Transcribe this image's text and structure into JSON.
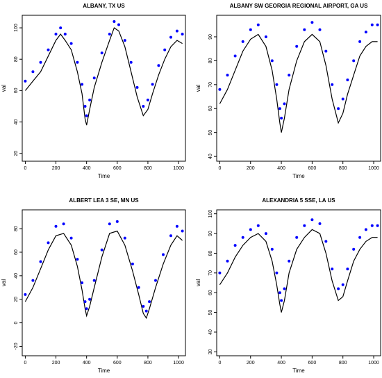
{
  "panels": [
    {
      "title": "ALBANY, TX US",
      "xlabel": "Time",
      "ylabel": "val"
    },
    {
      "title": "ALBANY SW GEORGIA REGIONAL AIRPORT, GA US",
      "xlabel": "Time",
      "ylabel": "val"
    },
    {
      "title": "ALBERT LEA 3 SE, MN US",
      "xlabel": "Time",
      "ylabel": "val"
    },
    {
      "title": "ALEXANDRIA 5 SSE, LA US",
      "xlabel": "Time",
      "ylabel": "val"
    }
  ],
  "colors": {
    "line": "#000000",
    "points": "#0000ff"
  },
  "chart_data": [
    {
      "type": "line",
      "title": "ALBANY, TX US",
      "xlabel": "Time",
      "ylabel": "val",
      "xlim": [
        -20,
        1045
      ],
      "ylim": [
        15,
        108
      ],
      "xticks": [
        0,
        200,
        400,
        600,
        800,
        1000
      ],
      "yticks": [
        20,
        40,
        60,
        80,
        100
      ],
      "series": [
        {
          "role": "line",
          "points": [
            [
              0,
              60
            ],
            [
              50,
              66
            ],
            [
              100,
              72
            ],
            [
              150,
              82
            ],
            [
              200,
              92
            ],
            [
              230,
              96
            ],
            [
              260,
              92
            ],
            [
              300,
              86
            ],
            [
              340,
              72
            ],
            [
              370,
              58
            ],
            [
              390,
              42
            ],
            [
              400,
              38
            ],
            [
              420,
              48
            ],
            [
              450,
              62
            ],
            [
              500,
              78
            ],
            [
              550,
              92
            ],
            [
              580,
              100
            ],
            [
              610,
              98
            ],
            [
              650,
              88
            ],
            [
              690,
              72
            ],
            [
              730,
              56
            ],
            [
              770,
              44
            ],
            [
              800,
              48
            ],
            [
              830,
              58
            ],
            [
              870,
              70
            ],
            [
              910,
              80
            ],
            [
              950,
              88
            ],
            [
              990,
              92
            ],
            [
              1025,
              90
            ]
          ]
        },
        {
          "role": "points",
          "points": [
            [
              0,
              66
            ],
            [
              50,
              72
            ],
            [
              100,
              78
            ],
            [
              150,
              86
            ],
            [
              200,
              96
            ],
            [
              230,
              100
            ],
            [
              260,
              96
            ],
            [
              300,
              90
            ],
            [
              340,
              78
            ],
            [
              370,
              64
            ],
            [
              390,
              50
            ],
            [
              400,
              44
            ],
            [
              420,
              54
            ],
            [
              450,
              68
            ],
            [
              500,
              84
            ],
            [
              550,
              96
            ],
            [
              580,
              104
            ],
            [
              610,
              102
            ],
            [
              650,
              92
            ],
            [
              690,
              78
            ],
            [
              730,
              62
            ],
            [
              770,
              50
            ],
            [
              800,
              54
            ],
            [
              830,
              64
            ],
            [
              870,
              76
            ],
            [
              910,
              86
            ],
            [
              950,
              94
            ],
            [
              990,
              98
            ],
            [
              1025,
              96
            ]
          ]
        }
      ]
    },
    {
      "type": "line",
      "title": "ALBANY SW GEORGIA REGIONAL AIRPORT, GA US",
      "xlabel": "Time",
      "ylabel": "val",
      "xlim": [
        -20,
        1045
      ],
      "ylim": [
        38,
        99
      ],
      "xticks": [
        0,
        200,
        400,
        600,
        800,
        1000
      ],
      "yticks": [
        40,
        50,
        60,
        70,
        80,
        90
      ],
      "series": [
        {
          "role": "line",
          "points": [
            [
              0,
              62
            ],
            [
              50,
              68
            ],
            [
              100,
              76
            ],
            [
              150,
              84
            ],
            [
              200,
              89
            ],
            [
              250,
              91
            ],
            [
              300,
              86
            ],
            [
              340,
              76
            ],
            [
              370,
              64
            ],
            [
              390,
              54
            ],
            [
              400,
              50
            ],
            [
              420,
              56
            ],
            [
              450,
              68
            ],
            [
              500,
              80
            ],
            [
              550,
              88
            ],
            [
              600,
              91
            ],
            [
              650,
              88
            ],
            [
              690,
              78
            ],
            [
              730,
              64
            ],
            [
              770,
              54
            ],
            [
              800,
              58
            ],
            [
              830,
              66
            ],
            [
              870,
              74
            ],
            [
              910,
              82
            ],
            [
              950,
              86
            ],
            [
              990,
              88
            ],
            [
              1025,
              88
            ]
          ]
        },
        {
          "role": "points",
          "points": [
            [
              0,
              68
            ],
            [
              50,
              74
            ],
            [
              100,
              82
            ],
            [
              150,
              88
            ],
            [
              200,
              93
            ],
            [
              250,
              95
            ],
            [
              300,
              90
            ],
            [
              340,
              80
            ],
            [
              370,
              70
            ],
            [
              390,
              60
            ],
            [
              400,
              56
            ],
            [
              420,
              62
            ],
            [
              450,
              74
            ],
            [
              500,
              86
            ],
            [
              550,
              93
            ],
            [
              600,
              96
            ],
            [
              650,
              93
            ],
            [
              690,
              84
            ],
            [
              730,
              70
            ],
            [
              770,
              60
            ],
            [
              800,
              64
            ],
            [
              830,
              72
            ],
            [
              870,
              80
            ],
            [
              910,
              88
            ],
            [
              950,
              92
            ],
            [
              990,
              95
            ],
            [
              1025,
              95
            ]
          ]
        }
      ]
    },
    {
      "type": "line",
      "title": "ALBERT LEA 3 SE, MN US",
      "xlabel": "Time",
      "ylabel": "val",
      "xlim": [
        -20,
        1045
      ],
      "ylim": [
        -28,
        96
      ],
      "xticks": [
        0,
        200,
        400,
        600,
        800,
        1000
      ],
      "yticks": [
        -20,
        0,
        20,
        40,
        60,
        80
      ],
      "series": [
        {
          "role": "line",
          "points": [
            [
              0,
              18
            ],
            [
              50,
              30
            ],
            [
              100,
              46
            ],
            [
              150,
              62
            ],
            [
              200,
              74
            ],
            [
              250,
              76
            ],
            [
              300,
              66
            ],
            [
              340,
              48
            ],
            [
              370,
              28
            ],
            [
              390,
              12
            ],
            [
              400,
              6
            ],
            [
              420,
              14
            ],
            [
              450,
              30
            ],
            [
              500,
              56
            ],
            [
              550,
              76
            ],
            [
              600,
              78
            ],
            [
              650,
              66
            ],
            [
              700,
              44
            ],
            [
              740,
              24
            ],
            [
              770,
              8
            ],
            [
              790,
              4
            ],
            [
              810,
              12
            ],
            [
              850,
              30
            ],
            [
              900,
              50
            ],
            [
              950,
              66
            ],
            [
              990,
              74
            ],
            [
              1025,
              70
            ]
          ]
        },
        {
          "role": "points",
          "points": [
            [
              0,
              24
            ],
            [
              50,
              36
            ],
            [
              100,
              52
            ],
            [
              150,
              68
            ],
            [
              200,
              82
            ],
            [
              250,
              84
            ],
            [
              300,
              72
            ],
            [
              340,
              54
            ],
            [
              370,
              34
            ],
            [
              390,
              18
            ],
            [
              400,
              12
            ],
            [
              420,
              20
            ],
            [
              450,
              36
            ],
            [
              500,
              62
            ],
            [
              550,
              84
            ],
            [
              600,
              86
            ],
            [
              650,
              72
            ],
            [
              700,
              50
            ],
            [
              740,
              30
            ],
            [
              770,
              14
            ],
            [
              790,
              10
            ],
            [
              810,
              18
            ],
            [
              850,
              36
            ],
            [
              900,
              58
            ],
            [
              950,
              74
            ],
            [
              990,
              82
            ],
            [
              1025,
              78
            ]
          ]
        }
      ]
    },
    {
      "type": "line",
      "title": "ALEXANDRIA 5 SSE, LA US",
      "xlabel": "Time",
      "ylabel": "val",
      "xlim": [
        -20,
        1045
      ],
      "ylim": [
        28,
        102
      ],
      "xticks": [
        0,
        200,
        400,
        600,
        800,
        1000
      ],
      "yticks": [
        30,
        40,
        50,
        60,
        70,
        80,
        90,
        100
      ],
      "series": [
        {
          "role": "line",
          "points": [
            [
              0,
              64
            ],
            [
              50,
              70
            ],
            [
              100,
              78
            ],
            [
              150,
              84
            ],
            [
              200,
              88
            ],
            [
              250,
              90
            ],
            [
              300,
              86
            ],
            [
              340,
              76
            ],
            [
              370,
              64
            ],
            [
              390,
              54
            ],
            [
              400,
              50
            ],
            [
              420,
              56
            ],
            [
              450,
              70
            ],
            [
              500,
              82
            ],
            [
              550,
              88
            ],
            [
              600,
              92
            ],
            [
              650,
              90
            ],
            [
              690,
              80
            ],
            [
              730,
              66
            ],
            [
              770,
              56
            ],
            [
              800,
              58
            ],
            [
              830,
              66
            ],
            [
              870,
              76
            ],
            [
              910,
              82
            ],
            [
              950,
              86
            ],
            [
              990,
              88
            ],
            [
              1025,
              88
            ]
          ]
        },
        {
          "role": "points",
          "points": [
            [
              0,
              70
            ],
            [
              50,
              76
            ],
            [
              100,
              84
            ],
            [
              150,
              88
            ],
            [
              200,
              92
            ],
            [
              250,
              94
            ],
            [
              300,
              90
            ],
            [
              340,
              82
            ],
            [
              370,
              70
            ],
            [
              390,
              60
            ],
            [
              400,
              56
            ],
            [
              420,
              62
            ],
            [
              450,
              76
            ],
            [
              500,
              88
            ],
            [
              550,
              94
            ],
            [
              600,
              97
            ],
            [
              650,
              95
            ],
            [
              690,
              86
            ],
            [
              730,
              72
            ],
            [
              770,
              62
            ],
            [
              800,
              64
            ],
            [
              830,
              72
            ],
            [
              870,
              82
            ],
            [
              910,
              88
            ],
            [
              950,
              92
            ],
            [
              990,
              94
            ],
            [
              1025,
              94
            ]
          ]
        }
      ]
    }
  ]
}
